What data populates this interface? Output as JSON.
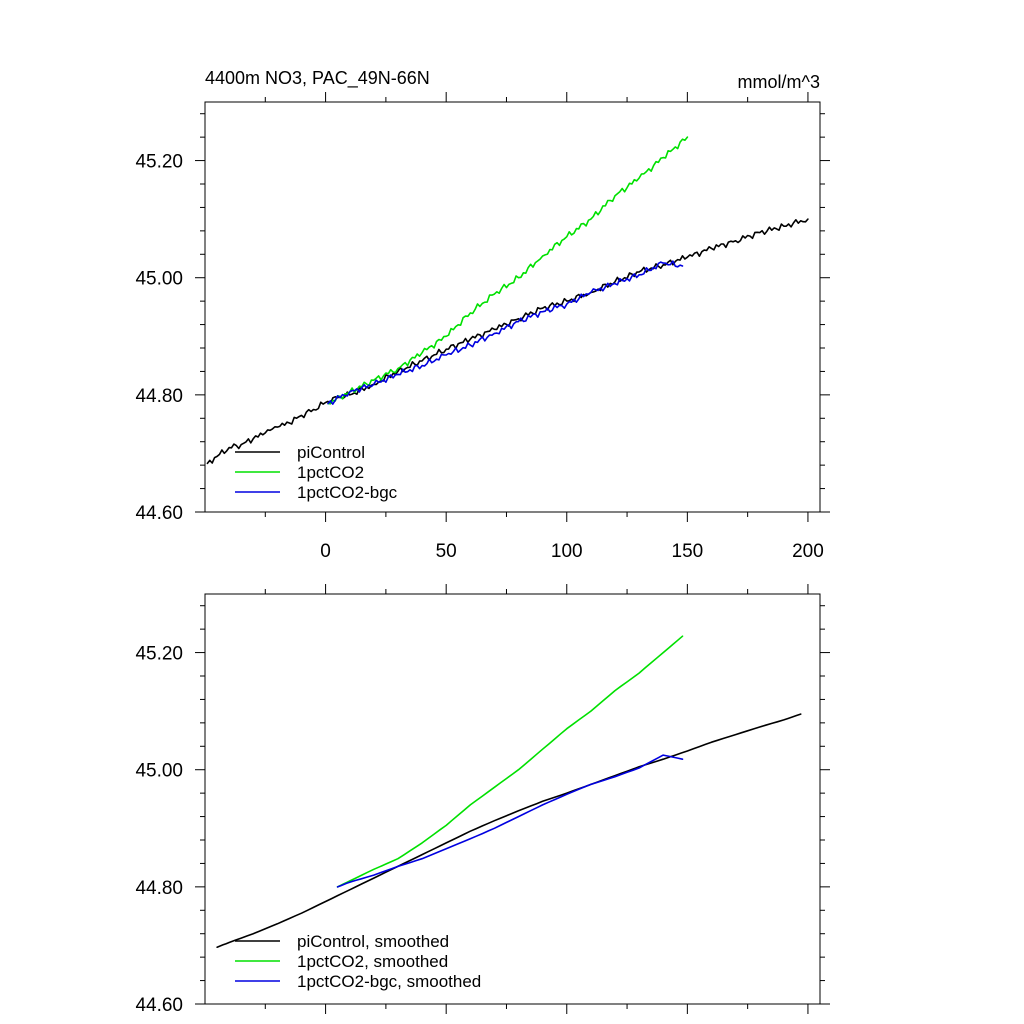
{
  "chart_data": [
    {
      "type": "line",
      "title_left": "4400m NO3, PAC_49N-66N",
      "title_right": "mmol/m^3",
      "xlim": [
        -50,
        205
      ],
      "ylim": [
        44.6,
        45.3
      ],
      "xticks": [
        0,
        50,
        100,
        150,
        200
      ],
      "xtick_labels": [
        "0",
        "50",
        "100",
        "150",
        "200"
      ],
      "yticks": [
        44.6,
        44.8,
        45.0,
        45.2
      ],
      "ytick_labels": [
        "44.60",
        "44.80",
        "45.00",
        "45.20"
      ],
      "show_xtick_labels": true,
      "legend_position": "bottom-left",
      "series": [
        {
          "name": "piControl",
          "color": "#000000",
          "x": [
            -49,
            -45,
            -40,
            -35,
            -30,
            -25,
            -20,
            -15,
            -10,
            -5,
            0,
            5,
            10,
            20,
            30,
            40,
            50,
            60,
            70,
            80,
            90,
            100,
            110,
            120,
            130,
            140,
            150,
            160,
            170,
            180,
            190,
            200
          ],
          "y": [
            44.683,
            44.695,
            44.71,
            44.715,
            44.725,
            44.735,
            44.745,
            44.752,
            44.765,
            44.775,
            44.787,
            44.795,
            44.8,
            44.818,
            44.84,
            44.858,
            44.878,
            44.895,
            44.912,
            44.93,
            44.948,
            44.96,
            44.975,
            44.993,
            45.01,
            45.022,
            45.035,
            45.05,
            45.063,
            45.077,
            45.088,
            45.1
          ]
        },
        {
          "name": "1pctCO2",
          "color": "#00e000",
          "x": [
            1,
            10,
            20,
            30,
            40,
            50,
            60,
            70,
            80,
            90,
            100,
            110,
            120,
            130,
            140,
            150
          ],
          "y": [
            44.785,
            44.805,
            44.825,
            44.845,
            44.872,
            44.9,
            44.94,
            44.972,
            45.0,
            45.037,
            45.07,
            45.1,
            45.14,
            45.17,
            45.205,
            45.24
          ]
        },
        {
          "name": "1pctCO2-bgc",
          "color": "#0000e0",
          "x": [
            1,
            10,
            20,
            30,
            40,
            50,
            60,
            70,
            80,
            90,
            100,
            110,
            120,
            130,
            140,
            148
          ],
          "y": [
            44.785,
            44.805,
            44.818,
            44.835,
            44.85,
            44.868,
            44.885,
            44.905,
            44.925,
            44.942,
            44.955,
            44.975,
            44.99,
            45.005,
            45.025,
            45.02
          ]
        }
      ]
    },
    {
      "type": "line",
      "xlim": [
        -50,
        205
      ],
      "ylim": [
        44.6,
        45.3
      ],
      "xticks": [
        0,
        50,
        100,
        150,
        200
      ],
      "yticks": [
        44.6,
        44.8,
        45.0,
        45.2
      ],
      "ytick_labels": [
        "44.60",
        "44.80",
        "45.00",
        "45.20"
      ],
      "show_xtick_labels": false,
      "legend_position": "bottom-left",
      "series": [
        {
          "name": "piControl, smoothed",
          "color": "#000000",
          "x": [
            -45,
            -40,
            -30,
            -20,
            -10,
            0,
            10,
            20,
            30,
            40,
            50,
            60,
            70,
            80,
            90,
            100,
            110,
            120,
            130,
            140,
            150,
            160,
            170,
            180,
            190,
            197
          ],
          "y": [
            44.697,
            44.705,
            44.72,
            44.737,
            44.755,
            44.775,
            44.795,
            44.815,
            44.835,
            44.855,
            44.875,
            44.895,
            44.913,
            44.93,
            44.946,
            44.96,
            44.975,
            44.99,
            45.005,
            45.018,
            45.032,
            45.047,
            45.06,
            45.073,
            45.085,
            45.095
          ]
        },
        {
          "name": "1pctCO2, smoothed",
          "color": "#00e000",
          "x": [
            5,
            10,
            20,
            30,
            40,
            50,
            60,
            70,
            80,
            90,
            100,
            110,
            120,
            130,
            140,
            148
          ],
          "y": [
            44.8,
            44.81,
            44.83,
            44.848,
            44.875,
            44.905,
            44.94,
            44.97,
            45.0,
            45.035,
            45.07,
            45.1,
            45.135,
            45.165,
            45.2,
            45.228
          ]
        },
        {
          "name": "1pctCO2-bgc, smoothed",
          "color": "#0000e0",
          "x": [
            5,
            10,
            20,
            30,
            40,
            50,
            60,
            70,
            80,
            90,
            100,
            110,
            120,
            130,
            140,
            148
          ],
          "y": [
            44.8,
            44.808,
            44.82,
            44.835,
            44.848,
            44.865,
            44.882,
            44.9,
            44.92,
            44.94,
            44.958,
            44.975,
            44.988,
            45.003,
            45.025,
            45.018
          ]
        }
      ]
    }
  ]
}
